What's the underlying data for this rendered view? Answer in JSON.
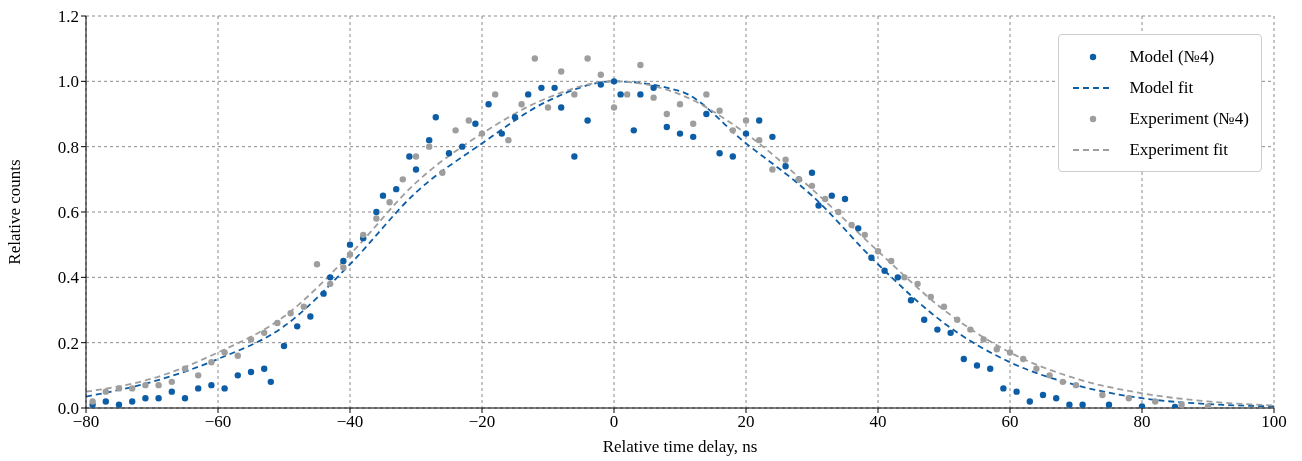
{
  "chart_data": {
    "type": "scatter",
    "xlabel": "Relative time delay, ns",
    "ylabel": "Relative counts",
    "xlim": [
      -80,
      100
    ],
    "xticks": [
      {
        "value": -80,
        "label": "−80"
      },
      {
        "value": -60,
        "label": "−60"
      },
      {
        "value": -40,
        "label": "−40"
      },
      {
        "value": -20,
        "label": "−20"
      },
      0,
      20,
      40,
      60,
      80,
      100
    ],
    "ylim": [
      0,
      1.2
    ],
    "yticks": [
      {
        "value": 0,
        "label": "0.0"
      },
      0.2,
      0.4,
      0.6,
      0.8,
      {
        "value": 1,
        "label": "1.0"
      },
      1.2
    ],
    "grid": true,
    "legend": "top right",
    "series": [
      {
        "name": "Model (№4)",
        "type": "scatter",
        "marker": "circle",
        "color": "#0c5da5",
        "x": [
          -79,
          -77,
          -75,
          -73,
          -71,
          -69,
          -67,
          -65,
          -63,
          -61,
          -59,
          -57,
          -55,
          -53,
          -52,
          -50,
          -48,
          -46,
          -44,
          -43,
          -41,
          -40,
          -38,
          -36,
          -35,
          -33,
          -31,
          -30,
          -28,
          -27,
          -25,
          -23,
          -21,
          -19,
          -17,
          -15,
          -13,
          -11,
          -9,
          -8,
          -6,
          -4,
          -2,
          0,
          1,
          3,
          4,
          6,
          8,
          10,
          12,
          14,
          16,
          18,
          20,
          22,
          24,
          26,
          28,
          30,
          31,
          33,
          35,
          37,
          39,
          41,
          43,
          45,
          47,
          49,
          51,
          53,
          55,
          57,
          59,
          61,
          63,
          65,
          67,
          69,
          71,
          75,
          80,
          85
        ],
        "values": [
          0.01,
          0.02,
          0.01,
          0.02,
          0.03,
          0.03,
          0.05,
          0.03,
          0.06,
          0.07,
          0.06,
          0.1,
          0.11,
          0.12,
          0.08,
          0.19,
          0.25,
          0.28,
          0.35,
          0.4,
          0.45,
          0.5,
          0.52,
          0.6,
          0.65,
          0.67,
          0.77,
          0.73,
          0.82,
          0.89,
          0.78,
          0.8,
          0.87,
          0.93,
          0.84,
          0.89,
          0.96,
          0.98,
          0.98,
          0.92,
          0.77,
          0.88,
          0.99,
          1.0,
          0.96,
          0.85,
          0.96,
          0.98,
          0.86,
          0.84,
          0.83,
          0.9,
          0.78,
          0.77,
          0.84,
          0.88,
          0.83,
          0.74,
          0.7,
          0.72,
          0.62,
          0.65,
          0.64,
          0.55,
          0.46,
          0.42,
          0.4,
          0.33,
          0.27,
          0.24,
          0.23,
          0.15,
          0.13,
          0.12,
          0.06,
          0.05,
          0.02,
          0.04,
          0.03,
          0.01,
          0.01,
          0.01,
          0.005,
          0.003
        ]
      },
      {
        "name": "Model fit",
        "type": "line",
        "marker": "none",
        "line_style": "dashed",
        "color": "#0c5da5",
        "x": [
          -80,
          -70,
          -60,
          -50,
          -40,
          -30,
          -20,
          -10,
          0,
          10,
          20,
          30,
          40,
          50,
          60,
          70,
          80,
          90,
          100
        ],
        "values": [
          0.035,
          0.08,
          0.15,
          0.25,
          0.44,
          0.66,
          0.81,
          0.94,
          1.0,
          0.97,
          0.81,
          0.65,
          0.44,
          0.26,
          0.14,
          0.07,
          0.03,
          0.012,
          0.005
        ]
      },
      {
        "name": "Experiment (№4)",
        "type": "scatter",
        "marker": "circle",
        "color": "#9e9e9e",
        "x": [
          -79,
          -77,
          -75,
          -73,
          -71,
          -69,
          -67,
          -65,
          -63,
          -61,
          -59,
          -57,
          -55,
          -53,
          -51,
          -49,
          -47,
          -45,
          -43,
          -41,
          -40,
          -38,
          -36,
          -34,
          -32,
          -30,
          -28,
          -26,
          -24,
          -22,
          -20,
          -18,
          -16,
          -14,
          -12,
          -10,
          -8,
          -6,
          -4,
          -2,
          0,
          2,
          4,
          6,
          8,
          10,
          12,
          14,
          16,
          18,
          20,
          22,
          24,
          26,
          28,
          30,
          32,
          34,
          36,
          38,
          40,
          42,
          44,
          46,
          48,
          50,
          52,
          54,
          56,
          58,
          60,
          62,
          64,
          66,
          68,
          70,
          74,
          78,
          82,
          86,
          90
        ],
        "values": [
          0.02,
          0.05,
          0.06,
          0.06,
          0.07,
          0.07,
          0.08,
          0.12,
          0.1,
          0.14,
          0.17,
          0.16,
          0.21,
          0.23,
          0.26,
          0.29,
          0.31,
          0.44,
          0.38,
          0.43,
          0.47,
          0.53,
          0.58,
          0.63,
          0.7,
          0.77,
          0.8,
          0.72,
          0.85,
          0.88,
          0.84,
          0.96,
          0.82,
          0.93,
          1.07,
          0.92,
          1.03,
          0.96,
          1.07,
          1.02,
          0.92,
          0.96,
          1.05,
          0.95,
          0.9,
          0.93,
          0.87,
          0.96,
          0.91,
          0.85,
          0.88,
          0.82,
          0.73,
          0.76,
          0.7,
          0.68,
          0.64,
          0.6,
          0.56,
          0.53,
          0.48,
          0.45,
          0.4,
          0.38,
          0.34,
          0.31,
          0.27,
          0.24,
          0.21,
          0.18,
          0.17,
          0.15,
          0.12,
          0.1,
          0.08,
          0.07,
          0.04,
          0.03,
          0.02,
          0.01,
          0.005
        ]
      },
      {
        "name": "Experiment fit",
        "type": "line",
        "marker": "none",
        "line_style": "dashed",
        "color": "#9e9e9e",
        "x": [
          -80,
          -70,
          -60,
          -50,
          -40,
          -30,
          -20,
          -10,
          0,
          10,
          20,
          30,
          40,
          50,
          60,
          70,
          80,
          90,
          100
        ],
        "values": [
          0.05,
          0.09,
          0.17,
          0.28,
          0.47,
          0.69,
          0.84,
          0.95,
          1.0,
          0.96,
          0.84,
          0.67,
          0.48,
          0.3,
          0.17,
          0.09,
          0.045,
          0.02,
          0.008
        ]
      }
    ]
  }
}
